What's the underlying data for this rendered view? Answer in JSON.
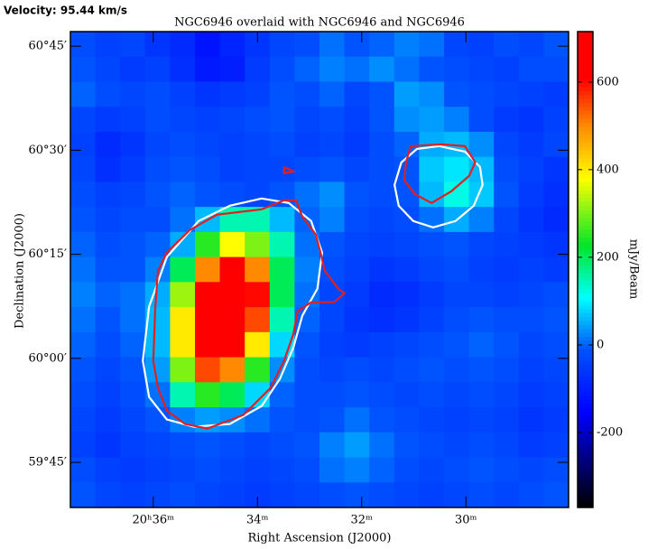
{
  "chart_data": {
    "type": "image",
    "annotation": "Velocity: 95.44 km/s",
    "title": "NGC6946 overlaid with NGC6946 and NGC6946",
    "xlabel": "Right Ascension (J2000)",
    "ylabel": "Declination (J2000)",
    "colorbar_label": "mJy/Beam",
    "xlim": [
      37.59,
      28.03
    ],
    "xticks": [
      {
        "value": 36,
        "label": "20ʰ36ᵐ"
      },
      {
        "value": 34,
        "label": "34ᵐ"
      },
      {
        "value": 32,
        "label": "32ᵐ"
      },
      {
        "value": 30,
        "label": "30ᵐ"
      }
    ],
    "ylim": [
      -21.5,
      47.1
    ],
    "yticks": [
      {
        "value": 45,
        "label": "60°45′"
      },
      {
        "value": 30,
        "label": "60°30′"
      },
      {
        "value": 15,
        "label": "60°15′"
      },
      {
        "value": 0,
        "label": "60°00′"
      },
      {
        "value": -15,
        "label": "59°45′"
      }
    ],
    "clim": [
      -371,
      715
    ],
    "cticks": [
      -200,
      0,
      200,
      400,
      600
    ],
    "values": [
      [
        -20,
        -40,
        -30,
        -60,
        -80,
        -120,
        -90,
        -60,
        -30,
        -20,
        10,
        -10,
        0,
        20,
        10,
        -30,
        -40,
        -20,
        -30,
        -10
      ],
      [
        -10,
        -30,
        -50,
        -40,
        -70,
        -110,
        -100,
        -50,
        -20,
        0,
        20,
        10,
        30,
        10,
        -10,
        -20,
        -30,
        -40,
        -20,
        -20
      ],
      [
        0,
        -20,
        -30,
        -20,
        -40,
        -60,
        -50,
        -40,
        -10,
        -20,
        0,
        -30,
        -10,
        40,
        30,
        -10,
        -20,
        -30,
        -40,
        -50
      ],
      [
        -30,
        -50,
        -40,
        -20,
        -30,
        -40,
        -30,
        -20,
        -10,
        -30,
        -20,
        -40,
        -10,
        30,
        40,
        20,
        -20,
        -50,
        -60,
        -40
      ],
      [
        -40,
        -80,
        -60,
        -30,
        -20,
        -30,
        -40,
        -30,
        -20,
        -40,
        -30,
        -50,
        -20,
        0,
        50,
        60,
        30,
        -30,
        -50,
        -30
      ],
      [
        -30,
        -70,
        -50,
        -20,
        -10,
        -20,
        -40,
        -30,
        -30,
        -20,
        -10,
        -30,
        -20,
        -10,
        70,
        90,
        60,
        -20,
        -40,
        -60
      ],
      [
        -20,
        -40,
        -30,
        -10,
        0,
        -10,
        -20,
        -30,
        -10,
        10,
        30,
        -10,
        -20,
        -10,
        60,
        120,
        70,
        -10,
        -50,
        -70
      ],
      [
        -10,
        -30,
        -20,
        -20,
        10,
        60,
        150,
        150,
        60,
        0,
        20,
        -20,
        -30,
        -20,
        10,
        50,
        20,
        -30,
        -60,
        -80
      ],
      [
        0,
        -20,
        -10,
        0,
        50,
        250,
        380,
        300,
        150,
        10,
        -10,
        -30,
        -40,
        -30,
        -20,
        -10,
        -30,
        -40,
        -50,
        -60
      ],
      [
        10,
        -10,
        -10,
        20,
        200,
        500,
        650,
        500,
        200,
        20,
        -20,
        -40,
        -60,
        -50,
        -30,
        -20,
        -40,
        -50,
        -40,
        -50
      ],
      [
        20,
        0,
        10,
        50,
        320,
        710,
        710,
        600,
        200,
        10,
        -30,
        -50,
        -80,
        -70,
        -50,
        -30,
        -30,
        -40,
        -30,
        -20
      ],
      [
        10,
        -10,
        10,
        60,
        400,
        710,
        710,
        550,
        150,
        0,
        -30,
        -60,
        -70,
        -60,
        -40,
        -20,
        -10,
        -20,
        -20,
        -10
      ],
      [
        0,
        -20,
        0,
        60,
        400,
        710,
        710,
        400,
        80,
        -10,
        -40,
        -50,
        -40,
        -30,
        -20,
        -10,
        0,
        -10,
        -30,
        -20
      ],
      [
        -10,
        -30,
        -10,
        40,
        300,
        550,
        500,
        250,
        30,
        -20,
        -30,
        -20,
        -30,
        -20,
        -10,
        -20,
        -10,
        -20,
        -40,
        -30
      ],
      [
        -20,
        -40,
        -20,
        10,
        150,
        250,
        200,
        80,
        0,
        -20,
        -20,
        -10,
        -20,
        -30,
        -20,
        -30,
        -20,
        -30,
        -50,
        -40
      ],
      [
        -30,
        -50,
        -30,
        -10,
        20,
        40,
        30,
        10,
        -10,
        -20,
        -10,
        10,
        -10,
        -20,
        -30,
        -40,
        -30,
        -40,
        -60,
        -50
      ],
      [
        -40,
        -60,
        -40,
        -30,
        -20,
        -10,
        -20,
        -30,
        -20,
        -10,
        20,
        40,
        10,
        -10,
        -20,
        -30,
        -20,
        -30,
        -50,
        -40
      ],
      [
        -20,
        -40,
        -50,
        -40,
        -30,
        -20,
        -30,
        -40,
        -30,
        -20,
        10,
        20,
        0,
        -20,
        -30,
        -20,
        -10,
        -20,
        -30,
        -20
      ],
      [
        -10,
        -30,
        -40,
        -30,
        -20,
        -30,
        -40,
        -50,
        -40,
        -30,
        -20,
        -10,
        -20,
        -30,
        -40,
        -30,
        -20,
        -30,
        -20,
        -10
      ]
    ],
    "contours": [
      {
        "color": "#ffffff",
        "x": [
          33.92,
          33.4,
          32.97,
          32.76,
          32.85,
          33.14,
          33.31,
          33.57,
          33.92,
          34.53,
          35.22,
          35.74,
          36.08,
          36.2,
          36.08,
          35.74,
          35.13,
          34.53,
          33.92
        ],
        "y": [
          23.04,
          22.39,
          19.79,
          15.24,
          10.04,
          6.14,
          1.59,
          -2.97,
          -6.87,
          -9.47,
          -9.86,
          -8.82,
          -5.57,
          -0.36,
          7.44,
          14.59,
          19.79,
          22.0,
          23.04
        ]
      },
      {
        "color": "#e02020",
        "x": [
          35.91,
          35.74,
          35.3,
          34.78,
          33.92,
          33.49,
          33.26,
          33.14,
          32.88,
          32.79,
          32.71,
          32.45,
          32.33,
          32.53,
          32.97,
          33.23,
          33.31,
          33.49,
          33.75,
          34.27,
          34.96,
          35.39,
          35.74,
          35.91,
          36.0,
          35.96,
          35.91
        ],
        "y": [
          12.64,
          15.24,
          18.49,
          20.7,
          21.48,
          22.78,
          22.78,
          20.44,
          17.84,
          15.24,
          12.64,
          10.04,
          9.39,
          8.09,
          8.09,
          6.79,
          3.54,
          -0.36,
          -4.27,
          -8.17,
          -10.12,
          -9.47,
          -7.52,
          -4.27,
          -0.36,
          7.44,
          12.64
        ]
      },
      {
        "color": "#e02020",
        "x": [
          33.49,
          33.31,
          33.49,
          33.49
        ],
        "y": [
          27.59,
          26.94,
          26.68,
          27.59
        ]
      },
      {
        "color": "#ffffff",
        "x": [
          30.51,
          30.02,
          29.73,
          29.68,
          29.85,
          30.2,
          30.63,
          31.01,
          31.29,
          31.37,
          31.24,
          30.94,
          30.51
        ],
        "y": [
          30.59,
          29.8,
          27.59,
          24.99,
          22.0,
          19.79,
          18.88,
          19.79,
          22.0,
          24.99,
          28.24,
          30.19,
          30.59
        ]
      },
      {
        "color": "#e02020",
        "x": [
          31.06,
          30.46,
          30.02,
          29.82,
          29.94,
          30.28,
          30.66,
          30.98,
          31.18,
          31.15,
          31.06
        ],
        "y": [
          30.59,
          30.85,
          30.59,
          28.24,
          26.29,
          24.08,
          22.39,
          23.69,
          25.64,
          28.24,
          30.59
        ]
      }
    ]
  }
}
